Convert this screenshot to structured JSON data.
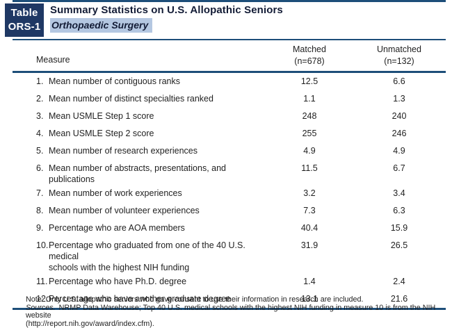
{
  "badge": {
    "line1": "Table",
    "line2": "ORS-1"
  },
  "header": {
    "title": "Summary Statistics on U.S. Allopathic Seniors",
    "specialty": "Orthopaedic Surgery"
  },
  "table": {
    "columns": {
      "measure": "Measure",
      "matched_line1": "Matched",
      "matched_line2": "(n=678)",
      "unmatched_line1": "Unmatched",
      "unmatched_line2": "(n=132)"
    },
    "rows": [
      {
        "num": "1.",
        "label": "Mean number of contiguous ranks",
        "matched": "12.5",
        "unmatched": "6.6"
      },
      {
        "num": "2.",
        "label": "Mean number of distinct specialties ranked",
        "matched": "1.1",
        "unmatched": "1.3"
      },
      {
        "num": "3.",
        "label": "Mean USMLE Step 1 score",
        "matched": "248",
        "unmatched": "240"
      },
      {
        "num": "4.",
        "label": "Mean USMLE Step 2 score",
        "matched": "255",
        "unmatched": "246"
      },
      {
        "num": "5.",
        "label": "Mean number of research experiences",
        "matched": "4.9",
        "unmatched": "4.9"
      },
      {
        "num": "6.",
        "label": "Mean number of abstracts, presentations, and publications",
        "matched": "11.5",
        "unmatched": "6.7"
      },
      {
        "num": "7.",
        "label": "Mean number of work experiences",
        "matched": "3.2",
        "unmatched": "3.4"
      },
      {
        "num": "8.",
        "label": "Mean number of volunteer experiences",
        "matched": "7.3",
        "unmatched": "6.3"
      },
      {
        "num": "9.",
        "label": "Percentage who are AOA members",
        "matched": "40.4",
        "unmatched": "15.9"
      },
      {
        "num": "10.",
        "label": "Percentage who graduated from one of the 40 U.S. medical",
        "label2": "schools with the highest NIH funding",
        "matched": "31.9",
        "unmatched": "26.5"
      },
      {
        "num": "11.",
        "label": "Percentage who have Ph.D. degree",
        "matched": "1.4",
        "unmatched": "2.4"
      },
      {
        "num": "12.",
        "label": "Percentage who have another graduate degree",
        "matched": "13.1",
        "unmatched": "21.6"
      }
    ]
  },
  "footnotes": {
    "note": "Note: Only U.S. allopathic seniors who gave consent to use their information in research are included.",
    "sources_label": "Sources.",
    "sources_text": "NRMP Data Warehouse; Top 40 U.S. medical schools with the highest NIH funding in measure 10 is from the NIH website",
    "sources_url_line": "(http://report.nih.gov/award/index.cfm)."
  },
  "colors": {
    "rule_navy": "#1d4e79",
    "badge_navy": "#1f3864",
    "highlight_blue": "#b4c7e1"
  }
}
